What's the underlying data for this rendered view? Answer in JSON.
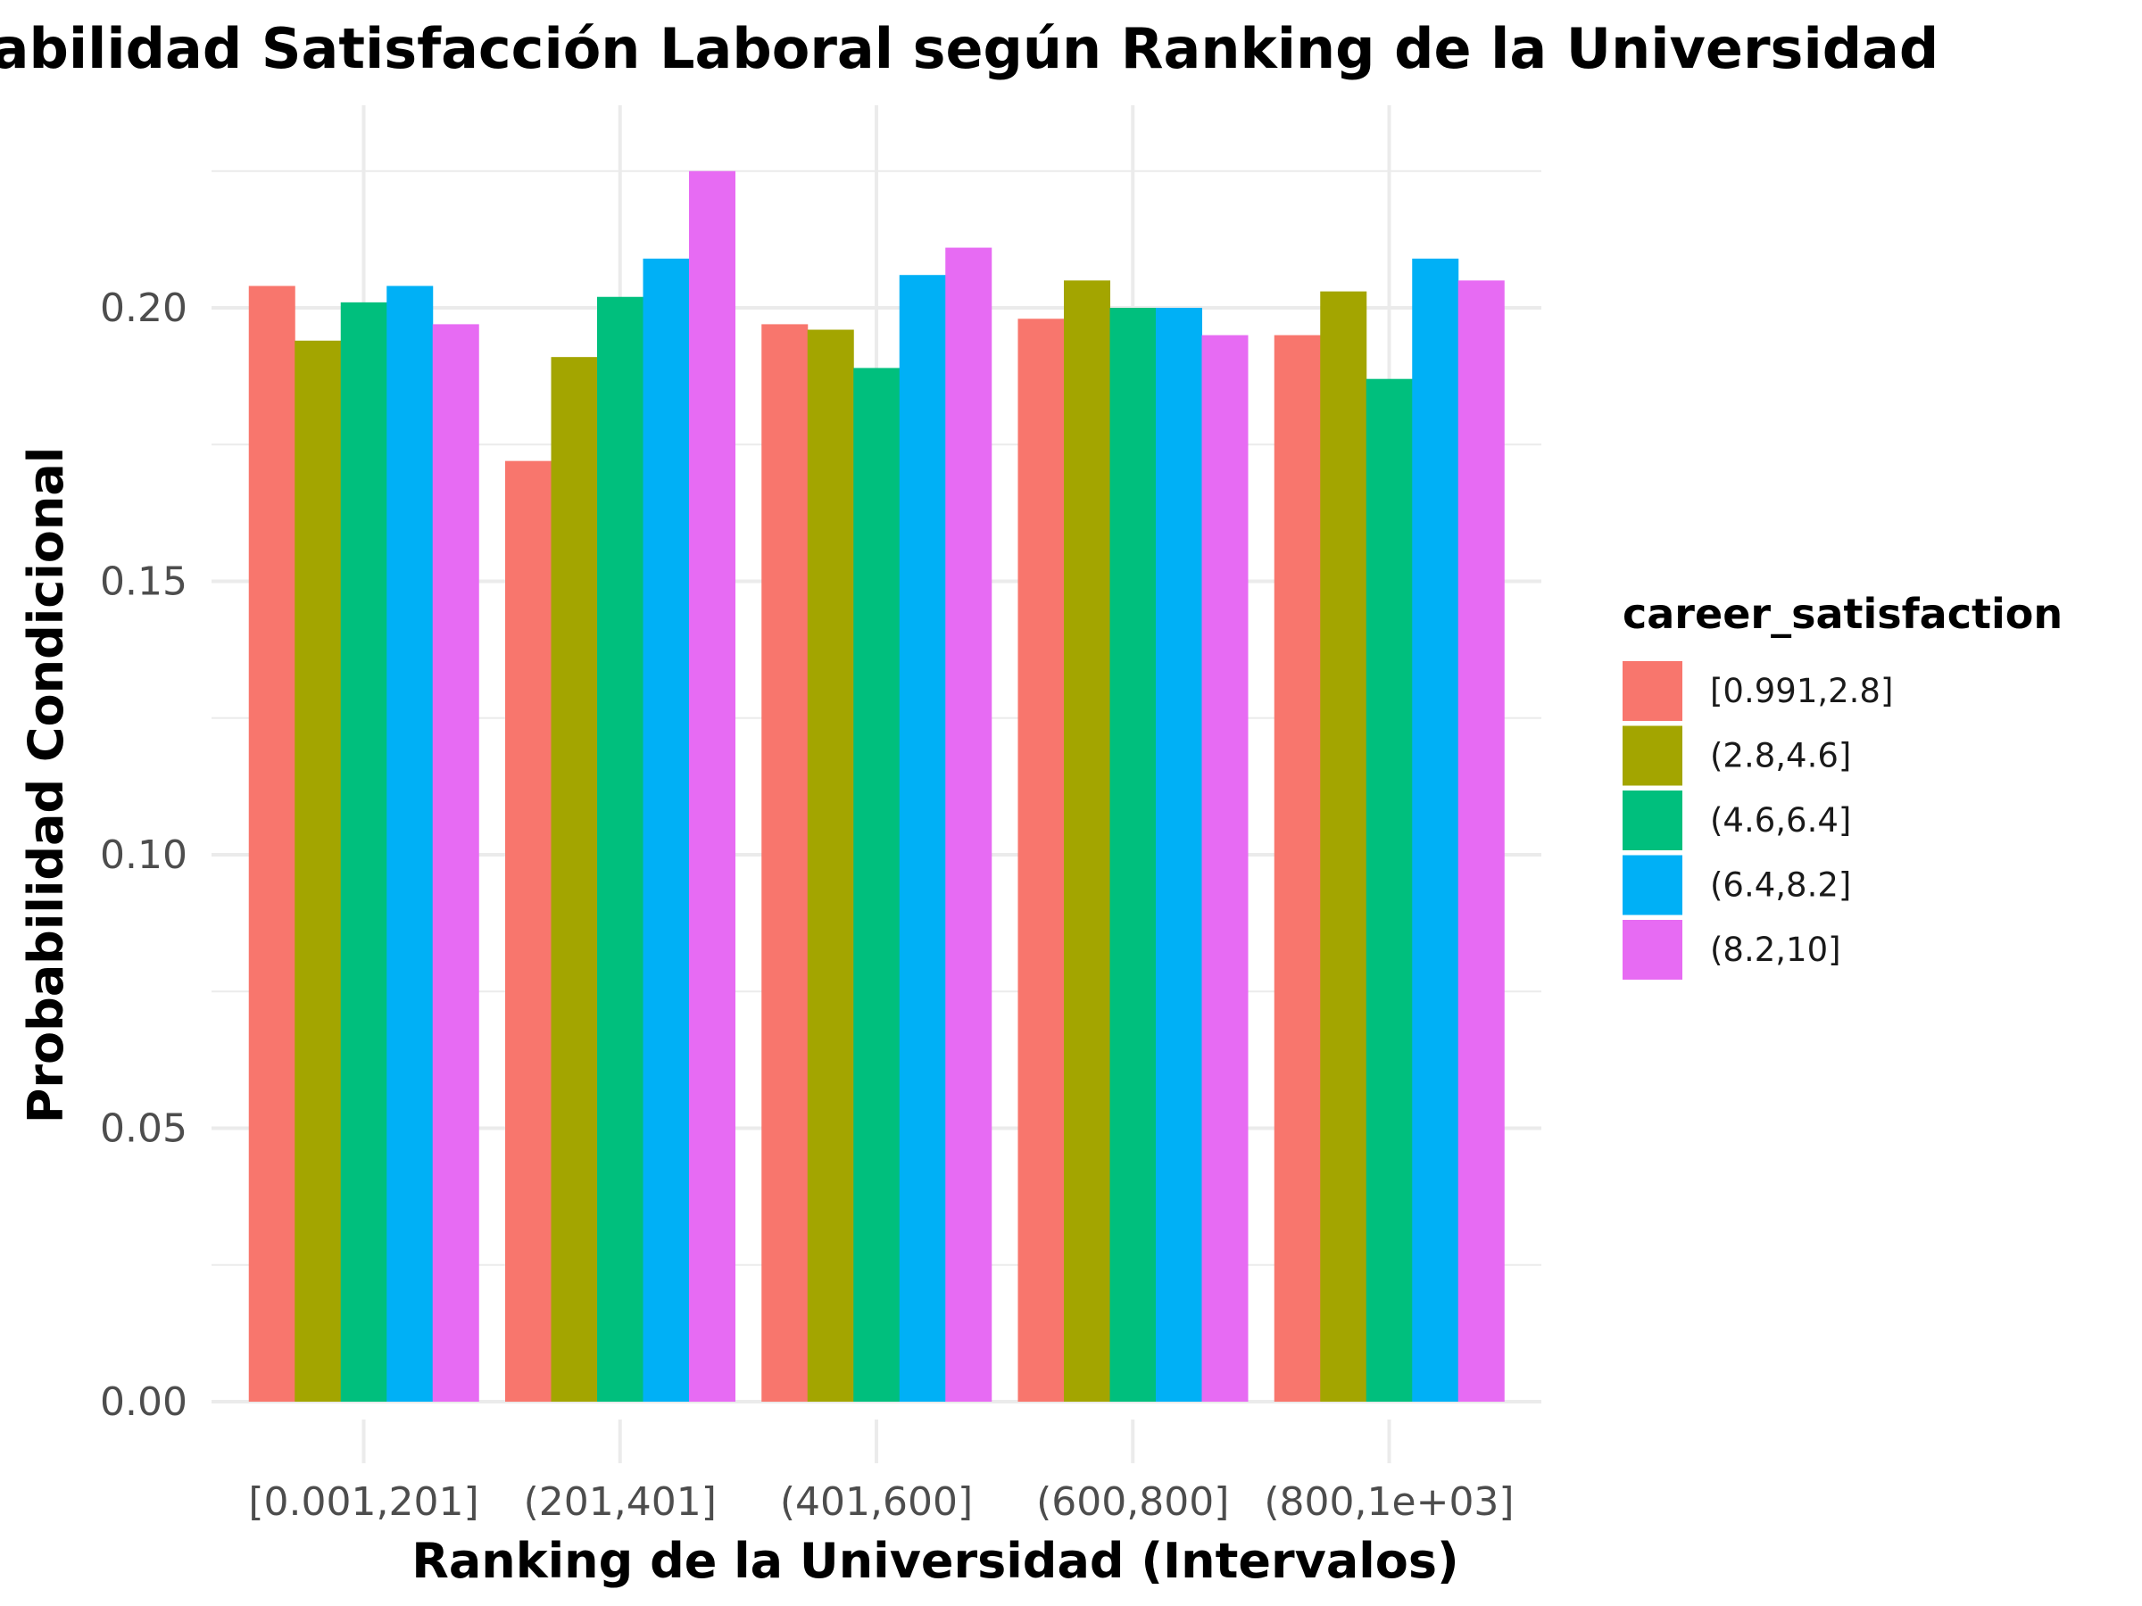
{
  "chart_data": {
    "type": "bar",
    "title": "Probabilidad  Satisfacción Laboral según Ranking de la Universidad",
    "xlabel": "Ranking de la Universidad (Intervalos)",
    "ylabel": "Probabilidad Condicional",
    "categories": [
      "[0.001,201]",
      "(201,401]",
      "(401,600]",
      "(600,800]",
      "(800,1e+03]"
    ],
    "ylim": [
      0,
      0.226
    ],
    "yticks": [
      0.0,
      0.05,
      0.1,
      0.15,
      0.2
    ],
    "ytick_labels": [
      "0.00",
      "0.05",
      "0.10",
      "0.15",
      "0.20"
    ],
    "grid": true,
    "legend_title": "career_satisfaction",
    "legend_position": "right",
    "series": [
      {
        "name": "[0.991,2.8]",
        "color": "#F8766D",
        "values": [
          0.204,
          0.172,
          0.197,
          0.198,
          0.195
        ]
      },
      {
        "name": "(2.8,4.6]",
        "color": "#A3A500",
        "values": [
          0.194,
          0.191,
          0.196,
          0.205,
          0.203
        ]
      },
      {
        "name": "(4.6,6.4]",
        "color": "#00BF7D",
        "values": [
          0.201,
          0.202,
          0.189,
          0.2,
          0.187
        ]
      },
      {
        "name": "(6.4,8.2]",
        "color": "#00B0F6",
        "values": [
          0.204,
          0.209,
          0.206,
          0.2,
          0.209
        ]
      },
      {
        "name": "(8.2,10]",
        "color": "#E76BF3",
        "values": [
          0.197,
          0.225,
          0.211,
          0.195,
          0.205
        ]
      }
    ]
  }
}
